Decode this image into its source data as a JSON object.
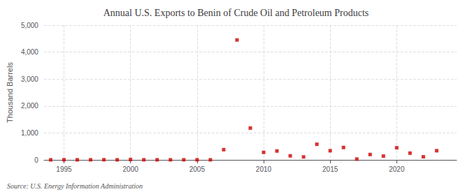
{
  "chart_data": {
    "type": "scatter",
    "title": "Annual U.S. Exports to Benin of Crude Oil and Petroleum Products",
    "ylabel": "Thousand Barrels",
    "annotations": [
      "Source: U.S. Energy Information Administration"
    ],
    "x": [
      1994,
      1995,
      1996,
      1997,
      1998,
      1999,
      2000,
      2001,
      2002,
      2003,
      2004,
      2005,
      2006,
      2007,
      2008,
      2009,
      2010,
      2011,
      2012,
      2013,
      2014,
      2015,
      2016,
      2017,
      2018,
      2019,
      2020,
      2021,
      2022,
      2023
    ],
    "values": [
      2,
      5,
      3,
      3,
      5,
      2,
      15,
      3,
      3,
      3,
      3,
      3,
      3,
      380,
      4450,
      1180,
      280,
      330,
      150,
      110,
      580,
      340,
      460,
      30,
      200,
      140,
      450,
      250,
      115,
      340
    ],
    "color": "#cc0000",
    "marker": "square",
    "xlim": [
      1993.5,
      2024.5
    ],
    "xticks": [
      1995,
      2000,
      2005,
      2010,
      2015,
      2020
    ],
    "ylim": [
      0,
      5000
    ],
    "yticks": [
      0,
      {
        "value": 1000,
        "label": "1,000"
      },
      {
        "value": 2000,
        "label": "2,000"
      },
      {
        "value": 3000,
        "label": "3,000"
      },
      {
        "value": 4000,
        "label": "4,000"
      },
      {
        "value": 5000,
        "label": "5,000"
      }
    ],
    "grid": true
  }
}
